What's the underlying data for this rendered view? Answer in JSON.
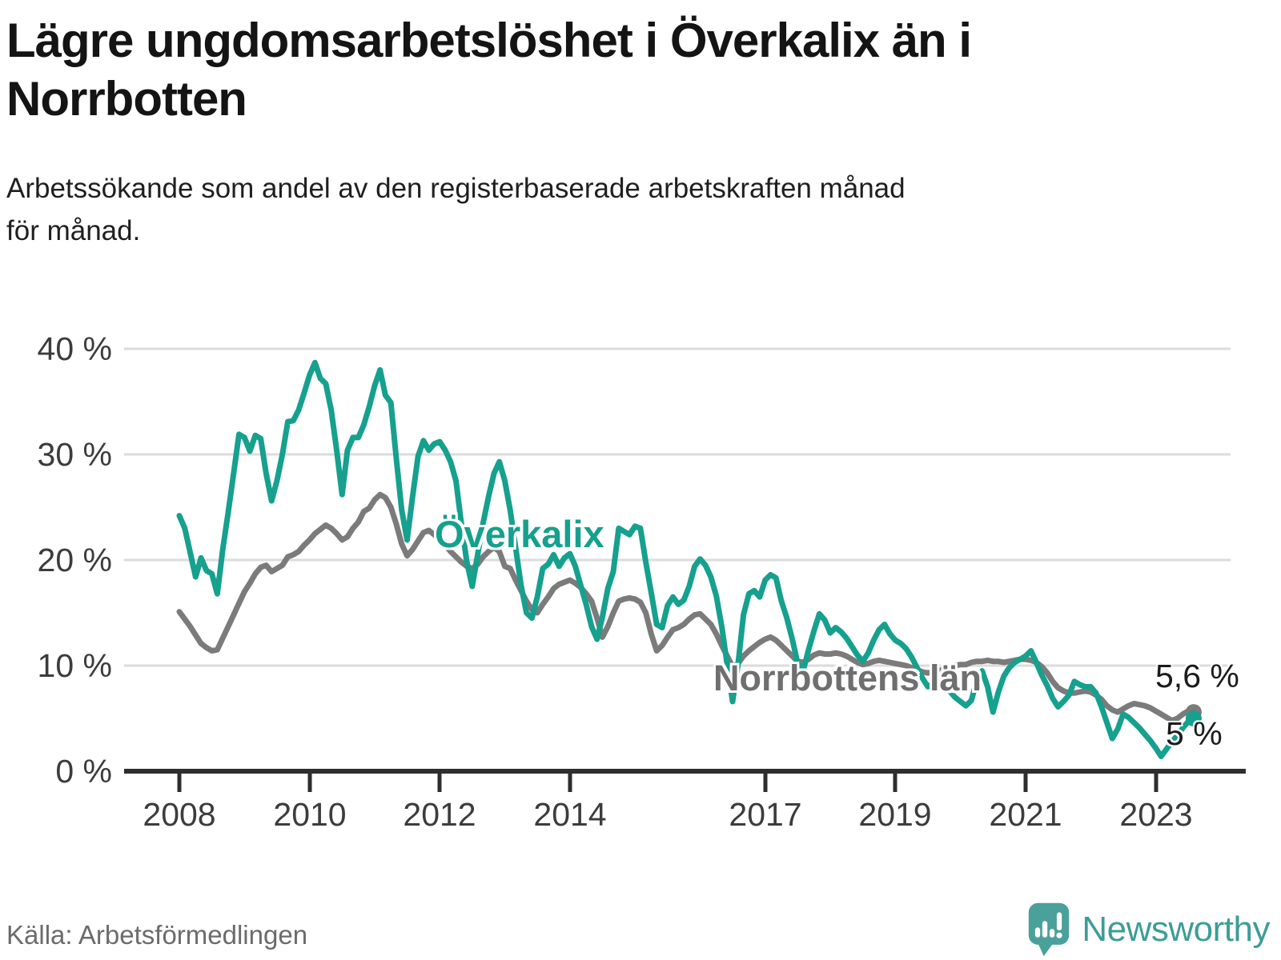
{
  "header": {
    "title_line1": "Lägre ungdomsarbetslöshet i Överkalix än i",
    "title_line2": "Norrbotten",
    "subtitle_line1": "Arbetssökande som andel av den registerbaserade arbetskraften månad",
    "subtitle_line2": "för månad."
  },
  "chart_data": {
    "type": "line",
    "unit": "%",
    "frequency": "monthly",
    "x_start": "2008-01",
    "x_end": "2023-08",
    "ylim": [
      0,
      40
    ],
    "grid": "horizontal",
    "legend_position": "inline-labels",
    "y_ticks": [
      "40 %",
      "30 %",
      "20 %",
      "10 %",
      "0 %"
    ],
    "y_tick_values": [
      40,
      30,
      20,
      10,
      0
    ],
    "x_ticks": [
      "2008",
      "2010",
      "2012",
      "2014",
      "2017",
      "2019",
      "2021",
      "2023"
    ],
    "x_tick_years": [
      2008,
      2010,
      2012,
      2014,
      2017,
      2019,
      2021,
      2023
    ],
    "series": [
      {
        "name": "Norrbottens län",
        "color": "#7b7b7b",
        "end_label": "5,6 %",
        "end_value": 5.6,
        "values": [
          15.1,
          14.4,
          13.7,
          12.9,
          12.1,
          11.7,
          11.4,
          11.5,
          12.6,
          13.7,
          14.8,
          15.9,
          17.0,
          17.8,
          18.7,
          19.3,
          19.5,
          18.9,
          19.2,
          19.5,
          20.3,
          20.5,
          20.8,
          21.4,
          21.9,
          22.5,
          22.9,
          23.3,
          23.0,
          22.5,
          21.9,
          22.2,
          23.0,
          23.6,
          24.6,
          24.9,
          25.7,
          26.2,
          25.9,
          25.0,
          23.4,
          21.5,
          20.4,
          21.0,
          21.8,
          22.6,
          22.8,
          22.4,
          21.9,
          21.4,
          20.8,
          20.3,
          19.8,
          19.4,
          19.2,
          19.6,
          20.3,
          20.8,
          21.2,
          20.8,
          19.4,
          19.2,
          18.1,
          17.1,
          16.1,
          15.3,
          15.0,
          15.8,
          16.5,
          17.3,
          17.7,
          17.9,
          18.1,
          17.8,
          17.4,
          16.8,
          16.1,
          14.5,
          12.7,
          13.7,
          15.0,
          16.1,
          16.3,
          16.4,
          16.3,
          16.0,
          15.0,
          13.0,
          11.4,
          11.9,
          12.7,
          13.4,
          13.6,
          13.9,
          14.4,
          14.8,
          14.9,
          14.4,
          13.9,
          13.0,
          11.9,
          10.9,
          9.9,
          10.2,
          10.9,
          11.4,
          11.8,
          12.2,
          12.5,
          12.7,
          12.4,
          11.9,
          11.4,
          10.9,
          10.4,
          10.3,
          10.6,
          11.0,
          11.2,
          11.1,
          11.1,
          11.2,
          11.1,
          10.9,
          10.6,
          10.3,
          10.1,
          10.2,
          10.4,
          10.5,
          10.4,
          10.3,
          10.2,
          10.1,
          10.0,
          9.8,
          9.6,
          9.4,
          9.3,
          9.4,
          9.5,
          9.7,
          9.8,
          10.0,
          10.1,
          10.1,
          10.3,
          10.4,
          10.4,
          10.5,
          10.4,
          10.4,
          10.3,
          10.4,
          10.5,
          10.6,
          10.6,
          10.5,
          10.3,
          9.9,
          9.3,
          8.5,
          7.9,
          7.6,
          7.4,
          7.4,
          7.5,
          7.6,
          7.5,
          7.2,
          6.8,
          6.2,
          5.8,
          5.6,
          5.9,
          6.2,
          6.4,
          6.3,
          6.2,
          6.0,
          5.7,
          5.4,
          5.1,
          4.8,
          5.0,
          5.4,
          5.7,
          5.6
        ]
      },
      {
        "name": "Överkalix",
        "color": "#16a08e",
        "end_label": "5 %",
        "end_value": 5.0,
        "values": [
          24.2,
          23.0,
          20.7,
          18.4,
          20.2,
          19.0,
          18.7,
          16.8,
          21.0,
          24.5,
          28.2,
          31.9,
          31.6,
          30.3,
          31.8,
          31.5,
          28.2,
          25.6,
          27.5,
          30.0,
          33.1,
          33.2,
          34.2,
          35.8,
          37.5,
          38.7,
          37.2,
          36.7,
          34.2,
          30.4,
          26.2,
          30.4,
          31.6,
          31.6,
          32.8,
          34.5,
          36.5,
          38.0,
          35.6,
          34.9,
          29.6,
          24.7,
          21.9,
          26.0,
          29.8,
          31.3,
          30.4,
          31.0,
          31.2,
          30.4,
          29.3,
          27.5,
          23.4,
          19.8,
          17.5,
          20.5,
          23.5,
          26.0,
          28.2,
          29.3,
          27.5,
          24.7,
          21.2,
          17.6,
          15.0,
          14.5,
          16.5,
          19.2,
          19.6,
          20.5,
          19.4,
          20.2,
          20.6,
          19.4,
          17.6,
          15.8,
          13.7,
          12.5,
          14.6,
          17.3,
          18.9,
          23.0,
          22.7,
          22.4,
          23.2,
          23.0,
          19.8,
          16.9,
          13.9,
          13.6,
          15.7,
          16.5,
          15.8,
          16.2,
          17.5,
          19.4,
          20.1,
          19.5,
          18.4,
          16.6,
          13.7,
          10.1,
          6.6,
          10.1,
          14.8,
          16.8,
          17.1,
          16.5,
          18.1,
          18.6,
          18.3,
          16.1,
          14.5,
          12.5,
          10.2,
          9.5,
          11.5,
          13.3,
          14.9,
          14.3,
          13.1,
          13.6,
          13.2,
          12.6,
          11.8,
          11.0,
          10.4,
          11.2,
          12.4,
          13.4,
          13.9,
          13.0,
          12.4,
          12.1,
          11.6,
          10.8,
          9.8,
          8.8,
          8.0,
          8.3,
          8.8,
          8.4,
          7.6,
          7.0,
          6.6,
          6.2,
          6.7,
          8.5,
          9.5,
          8.0,
          5.6,
          7.5,
          9.0,
          9.8,
          10.3,
          10.6,
          10.9,
          11.4,
          10.3,
          9.1,
          8.1,
          6.9,
          6.1,
          6.6,
          7.2,
          8.5,
          8.2,
          8.0,
          8.0,
          7.4,
          6.1,
          4.6,
          3.1,
          4.0,
          5.4,
          5.1,
          4.6,
          4.1,
          3.5,
          2.9,
          2.2,
          1.4,
          2.1,
          2.8,
          3.4,
          4.1,
          4.7,
          5.0
        ]
      }
    ]
  },
  "footer": {
    "source": "Källa: Arbetsförmedlingen",
    "brand": "Newsworthy"
  }
}
